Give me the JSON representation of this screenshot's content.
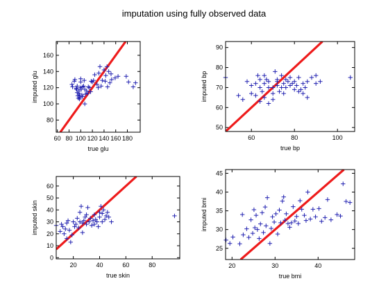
{
  "figure": {
    "title": "imputation using fully observed data",
    "colors": {
      "points": "#2020b0",
      "line": "#ee1b1b",
      "axes": "#000000",
      "background": "#ffffff"
    }
  },
  "chart_data": [
    {
      "type": "scatter",
      "xlabel": "true glu",
      "ylabel": "imputed glu",
      "xlim": [
        58,
        202
      ],
      "ylim": [
        65,
        177
      ],
      "xticks": [
        60,
        80,
        100,
        120,
        140,
        160,
        180
      ],
      "yticks": [
        80,
        100,
        120,
        140,
        160
      ],
      "grid": false,
      "reference_line": "y = x",
      "points": [
        [
          85,
          124
        ],
        [
          86,
          121
        ],
        [
          89,
          128
        ],
        [
          90,
          130
        ],
        [
          92,
          119
        ],
        [
          93,
          118
        ],
        [
          94,
          122
        ],
        [
          94,
          114
        ],
        [
          95,
          110
        ],
        [
          96,
          107
        ],
        [
          97,
          116
        ],
        [
          97,
          113
        ],
        [
          98,
          111
        ],
        [
          98,
          106
        ],
        [
          99,
          120
        ],
        [
          99,
          108
        ],
        [
          100,
          127
        ],
        [
          100,
          131
        ],
        [
          101,
          118
        ],
        [
          102,
          111
        ],
        [
          103,
          121
        ],
        [
          103,
          109
        ],
        [
          105,
          122
        ],
        [
          106,
          129
        ],
        [
          107,
          118
        ],
        [
          107,
          100
        ],
        [
          108,
          112
        ],
        [
          110,
          116
        ],
        [
          112,
          113
        ],
        [
          113,
          121
        ],
        [
          115,
          120
        ],
        [
          117,
          115
        ],
        [
          118,
          128
        ],
        [
          120,
          127
        ],
        [
          122,
          129
        ],
        [
          124,
          136
        ],
        [
          128,
          124
        ],
        [
          130,
          120
        ],
        [
          131,
          138
        ],
        [
          133,
          146
        ],
        [
          135,
          122
        ],
        [
          137,
          129
        ],
        [
          140,
          142
        ],
        [
          142,
          128
        ],
        [
          143,
          135
        ],
        [
          145,
          146
        ],
        [
          146,
          121
        ],
        [
          148,
          140
        ],
        [
          150,
          126
        ],
        [
          152,
          137
        ],
        [
          153,
          130
        ],
        [
          159,
          132
        ],
        [
          164,
          134
        ],
        [
          178,
          134
        ],
        [
          182,
          127
        ],
        [
          190,
          121
        ],
        [
          194,
          126
        ]
      ]
    },
    {
      "type": "scatter",
      "xlabel": "true bp",
      "ylabel": "imputed bp",
      "xlim": [
        48,
        108
      ],
      "ylim": [
        48,
        93
      ],
      "xticks": [
        60,
        80,
        100
      ],
      "yticks": [
        50,
        60,
        70,
        80,
        90
      ],
      "grid": false,
      "reference_line": "y = x",
      "points": [
        [
          48,
          75
        ],
        [
          54,
          66
        ],
        [
          56,
          64
        ],
        [
          58,
          73
        ],
        [
          60,
          71
        ],
        [
          60,
          67
        ],
        [
          62,
          66
        ],
        [
          62,
          72
        ],
        [
          63,
          76
        ],
        [
          64,
          74
        ],
        [
          64,
          70
        ],
        [
          64,
          63
        ],
        [
          65,
          68
        ],
        [
          66,
          76
        ],
        [
          66,
          72
        ],
        [
          66,
          65
        ],
        [
          67,
          74
        ],
        [
          68,
          70
        ],
        [
          68,
          62
        ],
        [
          68,
          73
        ],
        [
          70,
          70
        ],
        [
          70,
          67
        ],
        [
          70,
          64
        ],
        [
          71,
          78
        ],
        [
          72,
          73
        ],
        [
          72,
          71
        ],
        [
          72,
          74
        ],
        [
          73,
          68
        ],
        [
          74,
          70
        ],
        [
          74,
          76
        ],
        [
          75,
          67
        ],
        [
          75,
          72
        ],
        [
          76,
          74
        ],
        [
          76,
          70
        ],
        [
          77,
          73
        ],
        [
          78,
          71
        ],
        [
          78,
          75
        ],
        [
          79,
          72
        ],
        [
          80,
          69
        ],
        [
          80,
          73
        ],
        [
          81,
          71
        ],
        [
          82,
          68
        ],
        [
          82,
          75
        ],
        [
          83,
          69
        ],
        [
          84,
          72
        ],
        [
          84,
          67
        ],
        [
          85,
          70
        ],
        [
          86,
          73
        ],
        [
          86,
          65
        ],
        [
          88,
          75
        ],
        [
          90,
          72
        ],
        [
          90,
          76
        ],
        [
          92,
          73
        ],
        [
          106,
          75
        ]
      ]
    },
    {
      "type": "scatter",
      "xlabel": "true skin",
      "ylabel": "imputed skin",
      "xlim": [
        7,
        101
      ],
      "ylim": [
        -1,
        68
      ],
      "xticks": [
        20,
        40,
        60,
        80
      ],
      "yticks": [
        0,
        10,
        20,
        30,
        40,
        50,
        60
      ],
      "grid": false,
      "reference_line": "y = x",
      "points": [
        [
          7,
          27
        ],
        [
          10,
          22
        ],
        [
          11,
          28
        ],
        [
          12,
          26
        ],
        [
          13,
          20
        ],
        [
          14,
          24
        ],
        [
          15,
          29
        ],
        [
          15,
          16
        ],
        [
          16,
          31
        ],
        [
          17,
          23
        ],
        [
          18,
          13
        ],
        [
          19,
          19
        ],
        [
          20,
          30
        ],
        [
          21,
          26
        ],
        [
          22,
          28
        ],
        [
          23,
          33
        ],
        [
          24,
          25
        ],
        [
          25,
          30
        ],
        [
          25,
          38
        ],
        [
          26,
          43
        ],
        [
          27,
          21
        ],
        [
          27,
          29
        ],
        [
          28,
          31
        ],
        [
          29,
          34
        ],
        [
          30,
          28
        ],
        [
          30,
          36
        ],
        [
          31,
          42
        ],
        [
          32,
          30
        ],
        [
          33,
          33
        ],
        [
          34,
          27
        ],
        [
          35,
          31
        ],
        [
          36,
          36
        ],
        [
          36,
          28
        ],
        [
          37,
          32
        ],
        [
          38,
          30
        ],
        [
          39,
          26
        ],
        [
          40,
          34
        ],
        [
          40,
          38
        ],
        [
          41,
          43
        ],
        [
          42,
          30
        ],
        [
          42,
          37
        ],
        [
          43,
          40
        ],
        [
          44,
          32
        ],
        [
          45,
          35
        ],
        [
          46,
          38
        ],
        [
          47,
          34
        ],
        [
          49,
          30
        ],
        [
          97,
          35
        ]
      ]
    },
    {
      "type": "scatter",
      "xlabel": "true bmi",
      "ylabel": "imputed bmi",
      "xlim": [
        18.5,
        48.5
      ],
      "ylim": [
        22,
        46
      ],
      "xticks": [
        20,
        30,
        40
      ],
      "yticks": [
        25,
        30,
        35,
        40,
        45
      ],
      "grid": false,
      "reference_line": "y = x",
      "points": [
        [
          18.6,
          27.2
        ],
        [
          19.5,
          26.3
        ],
        [
          20.2,
          28.0
        ],
        [
          21.8,
          26.2
        ],
        [
          22.4,
          34.0
        ],
        [
          22.6,
          28.6
        ],
        [
          23.4,
          30.2
        ],
        [
          23.9,
          27.9
        ],
        [
          24.4,
          32.6
        ],
        [
          24.8,
          29.0
        ],
        [
          25.1,
          35.3
        ],
        [
          25.3,
          30.5
        ],
        [
          25.6,
          33.8
        ],
        [
          25.9,
          30.0
        ],
        [
          26.3,
          27.6
        ],
        [
          26.6,
          31.5
        ],
        [
          27.0,
          34.5
        ],
        [
          27.3,
          29.2
        ],
        [
          27.7,
          36.0
        ],
        [
          27.9,
          31.0
        ],
        [
          28.2,
          38.5
        ],
        [
          28.8,
          26.3
        ],
        [
          29.1,
          30.3
        ],
        [
          29.4,
          33.4
        ],
        [
          29.8,
          32.0
        ],
        [
          30.2,
          34.2
        ],
        [
          30.6,
          28.8
        ],
        [
          31.0,
          35.2
        ],
        [
          31.3,
          31.8
        ],
        [
          31.7,
          37.6
        ],
        [
          32.0,
          38.7
        ],
        [
          32.3,
          32.5
        ],
        [
          32.6,
          34.2
        ],
        [
          33.0,
          31.6
        ],
        [
          33.4,
          30.6
        ],
        [
          33.8,
          31.8
        ],
        [
          34.2,
          36.1
        ],
        [
          34.6,
          32.3
        ],
        [
          35.0,
          33.5
        ],
        [
          35.4,
          31.6
        ],
        [
          35.8,
          37.7
        ],
        [
          36.2,
          35.4
        ],
        [
          36.8,
          33.8
        ],
        [
          37.2,
          32.4
        ],
        [
          37.6,
          40.0
        ],
        [
          38.2,
          32.8
        ],
        [
          38.8,
          35.4
        ],
        [
          39.4,
          33.4
        ],
        [
          40.2,
          35.6
        ],
        [
          40.8,
          32.2
        ],
        [
          41.6,
          33.2
        ],
        [
          42.2,
          38.0
        ],
        [
          43.0,
          32.6
        ],
        [
          44.4,
          34.0
        ],
        [
          45.2,
          33.6
        ],
        [
          45.8,
          42.2
        ],
        [
          46.5,
          37.5
        ],
        [
          47.4,
          37.2
        ]
      ]
    }
  ]
}
